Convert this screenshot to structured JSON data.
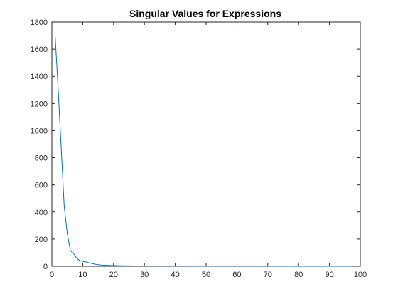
{
  "chart_data": {
    "type": "line",
    "title": "Singular Values for Expressions",
    "xlabel": "",
    "ylabel": "",
    "xlim": [
      0,
      100
    ],
    "ylim": [
      0,
      1800
    ],
    "xticks": [
      0,
      10,
      20,
      30,
      40,
      50,
      60,
      70,
      80,
      90,
      100
    ],
    "yticks": [
      0,
      200,
      400,
      600,
      800,
      1000,
      1200,
      1400,
      1600,
      1800
    ],
    "grid": false,
    "series": [
      {
        "name": "singular values",
        "color": "#0072BD",
        "x": [
          1,
          2,
          3,
          4,
          5,
          6,
          7,
          8,
          9,
          10,
          11,
          12,
          13,
          14,
          15,
          16,
          17,
          18,
          19,
          20,
          21,
          22,
          23,
          24,
          25,
          26,
          27,
          28,
          29,
          30,
          31,
          32,
          33,
          34,
          35,
          36,
          37,
          38,
          39,
          40,
          41,
          42,
          43,
          44,
          45,
          46,
          47,
          48,
          49,
          50,
          51,
          52,
          53,
          54,
          55,
          56,
          57,
          58,
          59,
          60,
          61,
          62,
          63,
          64,
          65,
          66,
          67,
          68,
          69,
          70,
          71,
          72,
          73,
          74,
          75,
          76,
          77,
          78,
          79,
          80,
          81,
          82,
          83,
          84,
          85,
          86,
          87,
          88,
          89,
          90,
          91,
          92,
          93,
          94,
          95,
          96,
          97
        ],
        "y": [
          1720,
          1320,
          880,
          440,
          240,
          115,
          95,
          60,
          42,
          36,
          32,
          26,
          20,
          15,
          12,
          9,
          8,
          7,
          6,
          5,
          5,
          4,
          4,
          3.5,
          3.2,
          3,
          2.8,
          2.6,
          2.4,
          2.2,
          2,
          1.9,
          1.8,
          1.7,
          1.6,
          1.5,
          1.4,
          1.3,
          1.25,
          1.2,
          1.15,
          1.1,
          1.05,
          1,
          0.95,
          0.9,
          0.88,
          0.85,
          0.82,
          0.8,
          0.78,
          0.75,
          0.72,
          0.7,
          0.68,
          0.65,
          0.62,
          0.6,
          0.58,
          0.55,
          0.52,
          0.5,
          0.48,
          0.46,
          0.44,
          0.42,
          0.4,
          0.38,
          0.36,
          0.35,
          0.34,
          0.33,
          0.32,
          0.31,
          0.3,
          0.29,
          0.28,
          0.27,
          0.26,
          0.25,
          0.24,
          0.23,
          0.22,
          0.21,
          0.2,
          0.19,
          0.18,
          0.17,
          0.16,
          0.15,
          0.14,
          0.13,
          0.12,
          0.11,
          0.1,
          0.09,
          0.08
        ]
      }
    ]
  },
  "style": {
    "axis_color": "#262626",
    "background": "#ffffff"
  }
}
